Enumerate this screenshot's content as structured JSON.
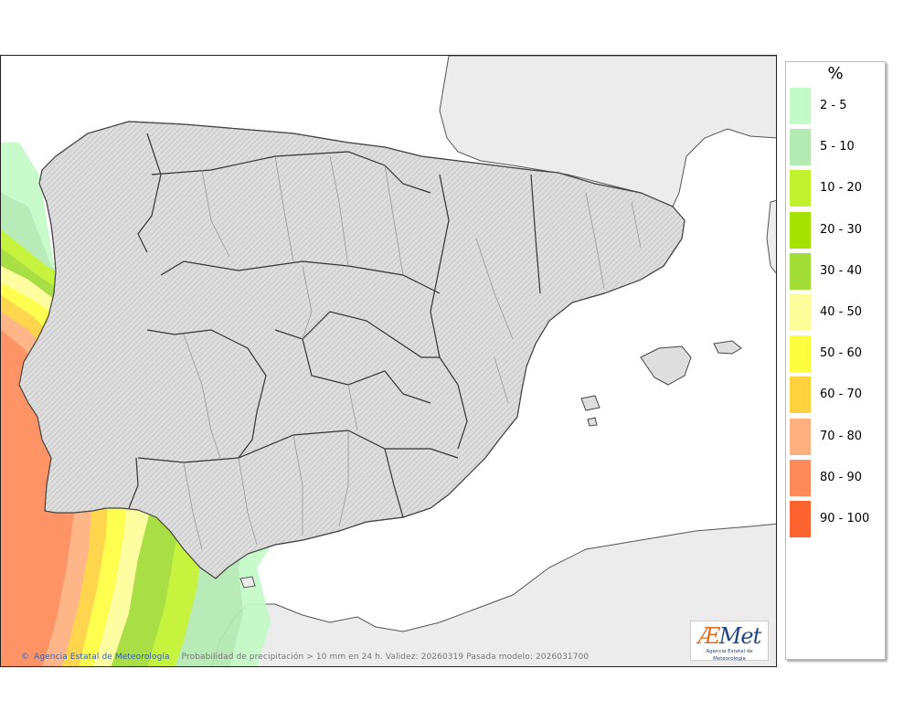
{
  "footer": {
    "copyright_symbol": "©",
    "agency": "Agencia Estatal de Meteorología",
    "caption": "Probabilidad de precipitación > 10 mm en 24 h. Validez: 20260319 Pasada modelo: 2026031700"
  },
  "logo": {
    "wordmark_a": "Æ",
    "wordmark_rest": "Met",
    "subtitle": "Agencia Estatal de Meteorología"
  },
  "legend": {
    "unit": "%",
    "items": [
      {
        "label": "2 - 5",
        "color": "#c4fac8"
      },
      {
        "label": "5 - 10",
        "color": "#b4eab4"
      },
      {
        "label": "10 - 20",
        "color": "#c2f22e"
      },
      {
        "label": "20 - 30",
        "color": "#a6e200"
      },
      {
        "label": "30 - 40",
        "color": "#a2dc36"
      },
      {
        "label": "40 - 50",
        "color": "#fefe9a"
      },
      {
        "label": "50 - 60",
        "color": "#fefe40"
      },
      {
        "label": "60 - 70",
        "color": "#fed23e"
      },
      {
        "label": "70 - 80",
        "color": "#feb080"
      },
      {
        "label": "80 - 90",
        "color": "#fe8a5a"
      },
      {
        "label": "90 - 100",
        "color": "#fe6430"
      }
    ]
  },
  "colors": {
    "land": "#e4e4e4",
    "neighbor_land": "#ececec",
    "sea": "#ffffff",
    "border": "#333333",
    "region_border": "#888888"
  }
}
